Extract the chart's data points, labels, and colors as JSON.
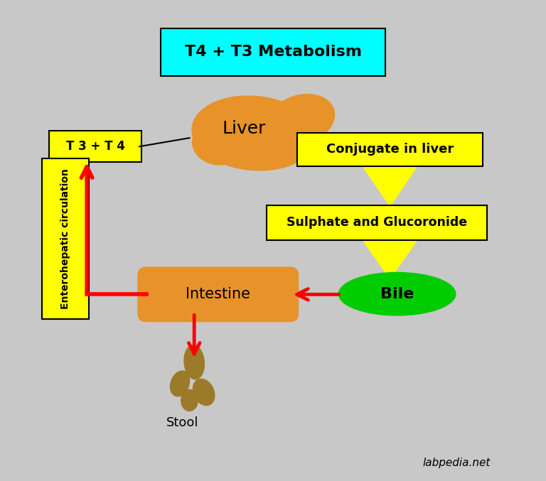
{
  "bg_color": "#C8C8C8",
  "fig_width": 7.68,
  "fig_height": 6.77,
  "title": "T4 + T3 Metabolism",
  "t3t4_label": "T 3 + T 4",
  "enterohepatic_label": "Enterohepatic circulation",
  "conjugate_label": "Conjugate in liver",
  "sulphate_label": "Sulphate and Glucoronide",
  "bile_label": "Bile",
  "intestine_label": "Intestine",
  "stool_label": "Stool",
  "liver_label": "Liver",
  "watermark": "labpedia.net",
  "liver_fill": "#E8922A",
  "intestine_fill": "#E8922A",
  "stool_fill": "#9B7B2A",
  "yellow_color": "#FFFF00",
  "green_color": "#00CC00",
  "arrow_red": "#FF0000",
  "cyan_color": "#00FFFF",
  "black": "#000000",
  "white": "#FFFFFF"
}
